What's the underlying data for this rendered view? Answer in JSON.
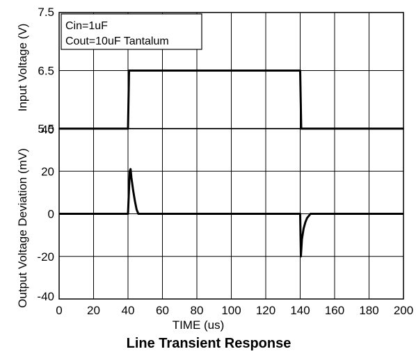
{
  "chart_data": [
    {
      "type": "line",
      "panel": "top",
      "ylabel": "Input Voltage (V)",
      "xlim": [
        0,
        200
      ],
      "ylim": [
        5.5,
        7.5
      ],
      "x_ticks": [
        0,
        20,
        40,
        60,
        80,
        100,
        120,
        140,
        160,
        180,
        200
      ],
      "y_ticks": [
        "5.5",
        "6.5",
        "7.5"
      ],
      "y_tick_values": [
        5.5,
        6.5,
        7.5
      ],
      "grid": true,
      "legend": [
        "Cin=1uF",
        "Cout=10uF Tantalum"
      ],
      "legend_placement": "top-left",
      "series": [
        {
          "x": [
            0,
            40,
            40.6,
            140,
            140.6,
            200
          ],
          "y": [
            5.5,
            5.5,
            6.5,
            6.5,
            5.5,
            5.5
          ]
        }
      ]
    },
    {
      "type": "line",
      "panel": "bottom",
      "ylabel": "Output Voltage Deviation (mV)",
      "xlabel": "TIME (us)",
      "xlim": [
        0,
        200
      ],
      "ylim": [
        -40,
        40
      ],
      "x_ticks": [
        "0",
        "20",
        "40",
        "60",
        "80",
        "100",
        "120",
        "140",
        "160",
        "180",
        "200"
      ],
      "x_tick_values": [
        0,
        20,
        40,
        60,
        80,
        100,
        120,
        140,
        160,
        180,
        200
      ],
      "y_ticks": [
        "-40",
        "-20",
        "0",
        "20",
        "40"
      ],
      "y_tick_values": [
        -40,
        -20,
        0,
        20,
        40
      ],
      "grid": true,
      "series": [
        {
          "x": [
            0,
            40,
            41,
            41.5,
            42,
            43,
            44,
            45,
            46,
            47,
            140,
            140.4,
            141,
            142,
            143,
            144,
            145,
            146,
            200
          ],
          "y": [
            0,
            0,
            20,
            21,
            17,
            11,
            6,
            2,
            0,
            0,
            0,
            -20,
            -12,
            -7,
            -4,
            -2,
            -1,
            0,
            0
          ]
        }
      ]
    }
  ],
  "caption": "Line Transient Response"
}
